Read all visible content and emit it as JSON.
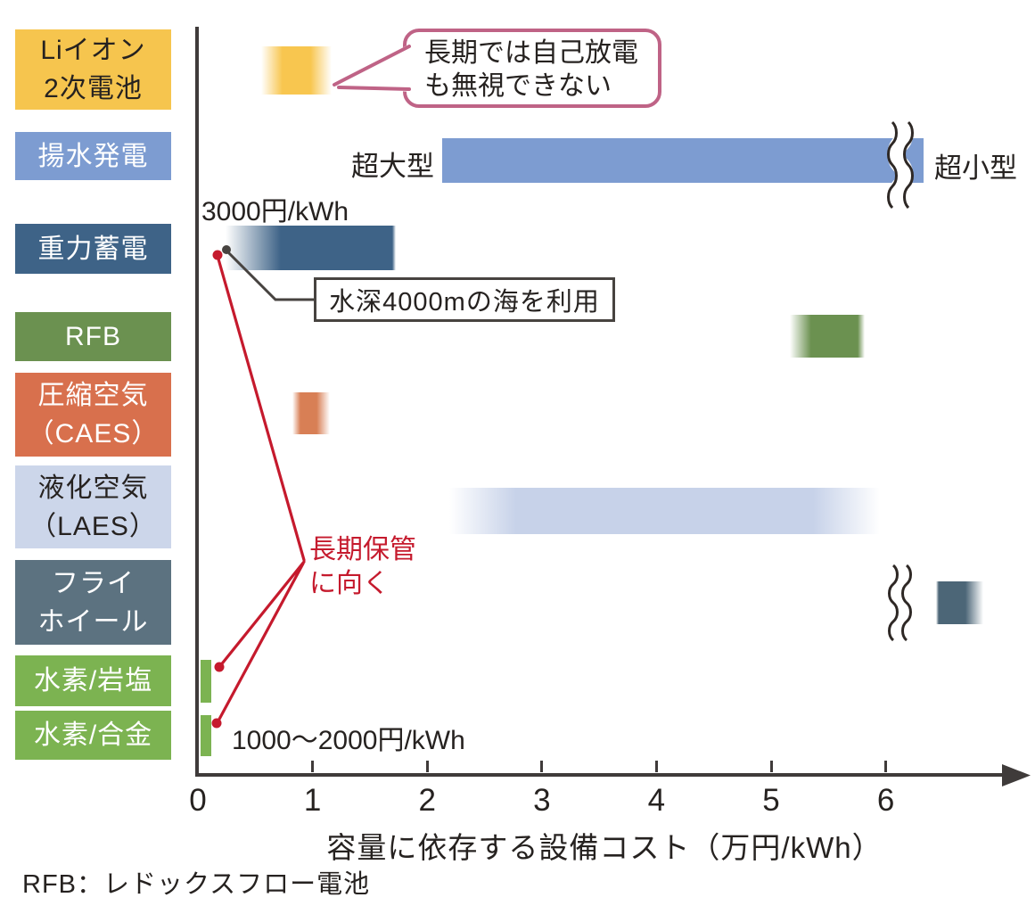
{
  "chart_data": {
    "type": "bar",
    "subtype": "horizontal-range-bars",
    "title": "",
    "xlabel": "容量に依存する設備コスト（万円/kWh）",
    "xlim": [
      0,
      7
    ],
    "x_ticks": [
      "0",
      "1",
      "2",
      "3",
      "4",
      "5",
      "6"
    ],
    "unit": "万円/kWh",
    "rows": [
      {
        "id": "li-ion",
        "label_lines": [
          "Liイオン",
          "2次電池"
        ],
        "box_color": "#f6c54e",
        "label_text_color": "#262220",
        "bar": {
          "from": 0.55,
          "to": 1.17,
          "color": "#f8c64f"
        }
      },
      {
        "id": "pumped-hydro",
        "label_lines": [
          "揚水発電"
        ],
        "box_color": "#7d9cd1",
        "label_text_color": "#ffffff",
        "bar": {
          "from": 2.13,
          "to": 6.33,
          "color": "#7d9cd1",
          "axis_break_at": 6.1
        },
        "note_left": "超大型",
        "note_right": "超小型"
      },
      {
        "id": "gravity",
        "label_lines": [
          "重力蓄電"
        ],
        "box_color": "#3e6387",
        "label_text_color": "#ffffff",
        "bar": {
          "from": 0.24,
          "to": 1.73,
          "color": "#3e6387"
        },
        "cost_note": "3000円/kWh"
      },
      {
        "id": "rfb",
        "label_lines": [
          "RFB"
        ],
        "box_color": "#6b9150",
        "label_text_color": "#ffffff",
        "bar": {
          "from": 5.16,
          "to": 5.82,
          "color": "#6b9150"
        }
      },
      {
        "id": "caes",
        "label_lines": [
          "圧縮空気",
          "（CAES）"
        ],
        "box_color": "#d8704d",
        "label_text_color": "#ffffff",
        "bar": {
          "from": 0.82,
          "to": 1.15,
          "color": "#d87f55"
        }
      },
      {
        "id": "laes",
        "label_lines": [
          "液化空気",
          "（LAES）"
        ],
        "box_color": "#ccd6ea",
        "label_text_color": "#262220",
        "bar": {
          "from": 2.19,
          "to": 5.95,
          "color": "#c7d2e9"
        }
      },
      {
        "id": "flywheel",
        "label_lines": [
          "フライ",
          "ホイール"
        ],
        "box_color": "#5c7280",
        "label_text_color": "#ffffff",
        "bar": {
          "from": 6.44,
          "to": 6.85,
          "color": "#4c6677",
          "beyond_axis_break": true
        }
      },
      {
        "id": "h2-rock-salt",
        "label_lines": [
          "水素/岩塩"
        ],
        "box_color": "#7cb351",
        "label_text_color": "#ffffff",
        "bar": {
          "from": 0.02,
          "to": 0.12,
          "color": "#7cb351"
        }
      },
      {
        "id": "h2-alloy",
        "label_lines": [
          "水素/合金"
        ],
        "box_color": "#7cb351",
        "label_text_color": "#ffffff",
        "bar": {
          "from": 0.02,
          "to": 0.12,
          "color": "#7cb351"
        },
        "cost_note": "1000〜2000円/kWh"
      }
    ]
  },
  "annotations": {
    "li_ion_callout_lines": [
      "長期では自己放電",
      "も無視できない"
    ],
    "gravity_callout": "水深4000mの海を利用",
    "gravity_cost": "3000円/kWh",
    "hydrogen_cost": "1000〜2000円/kWh",
    "pumped_left": "超大型",
    "pumped_right": "超小型",
    "long_term_lines": [
      "長期保管",
      "に向く"
    ],
    "footnote": "RFB：レドックスフロー電池"
  },
  "colors": {
    "red_annotation": "#c51a2d",
    "pink_callout_border": "#bf6386",
    "gray_callout_border": "#474340",
    "axis": "#3f3b3a",
    "text": "#262220"
  }
}
